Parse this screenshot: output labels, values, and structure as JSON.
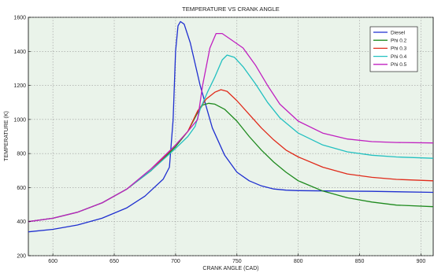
{
  "chart_data": {
    "type": "line",
    "title": "TEMPERATURE VS CRANK ANGLE",
    "xlabel": "CRANK ANGLE (CAD)",
    "ylabel": "TEMPERATURE (K)",
    "xlim": [
      580,
      910
    ],
    "ylim": [
      200,
      1600
    ],
    "xticks": [
      600,
      650,
      700,
      750,
      800,
      850,
      900
    ],
    "yticks": [
      200,
      400,
      600,
      800,
      1000,
      1200,
      1400,
      1600
    ],
    "grid": true,
    "legend_position": "top-right",
    "series": [
      {
        "name": "Diesel",
        "color": "#1f2fd0",
        "points": [
          [
            580,
            340
          ],
          [
            600,
            355
          ],
          [
            620,
            380
          ],
          [
            640,
            420
          ],
          [
            660,
            480
          ],
          [
            675,
            550
          ],
          [
            690,
            650
          ],
          [
            695,
            720
          ],
          [
            698,
            1000
          ],
          [
            700,
            1400
          ],
          [
            702,
            1550
          ],
          [
            704,
            1575
          ],
          [
            707,
            1560
          ],
          [
            712,
            1450
          ],
          [
            720,
            1200
          ],
          [
            730,
            950
          ],
          [
            740,
            790
          ],
          [
            750,
            690
          ],
          [
            760,
            640
          ],
          [
            770,
            610
          ],
          [
            780,
            592
          ],
          [
            790,
            585
          ],
          [
            800,
            582
          ],
          [
            830,
            580
          ],
          [
            860,
            578
          ],
          [
            910,
            572
          ]
        ]
      },
      {
        "name": "Phi 0.2",
        "color": "#1e8a1e",
        "points": [
          [
            580,
            400
          ],
          [
            600,
            420
          ],
          [
            620,
            455
          ],
          [
            640,
            510
          ],
          [
            660,
            590
          ],
          [
            680,
            700
          ],
          [
            700,
            840
          ],
          [
            710,
            930
          ],
          [
            718,
            1040
          ],
          [
            722,
            1085
          ],
          [
            727,
            1095
          ],
          [
            732,
            1090
          ],
          [
            740,
            1060
          ],
          [
            750,
            990
          ],
          [
            760,
            900
          ],
          [
            770,
            820
          ],
          [
            780,
            750
          ],
          [
            790,
            690
          ],
          [
            800,
            640
          ],
          [
            820,
            580
          ],
          [
            840,
            540
          ],
          [
            860,
            515
          ],
          [
            880,
            497
          ],
          [
            910,
            488
          ]
        ]
      },
      {
        "name": "Phi 0.3",
        "color": "#e02a1a",
        "points": [
          [
            580,
            400
          ],
          [
            600,
            420
          ],
          [
            620,
            455
          ],
          [
            640,
            510
          ],
          [
            660,
            590
          ],
          [
            680,
            700
          ],
          [
            700,
            850
          ],
          [
            710,
            930
          ],
          [
            718,
            1050
          ],
          [
            725,
            1120
          ],
          [
            732,
            1160
          ],
          [
            737,
            1175
          ],
          [
            742,
            1165
          ],
          [
            750,
            1110
          ],
          [
            760,
            1030
          ],
          [
            770,
            950
          ],
          [
            780,
            880
          ],
          [
            790,
            820
          ],
          [
            800,
            780
          ],
          [
            820,
            720
          ],
          [
            840,
            680
          ],
          [
            860,
            660
          ],
          [
            880,
            648
          ],
          [
            910,
            640
          ]
        ]
      },
      {
        "name": "Phi 0.4",
        "color": "#22c0c0",
        "points": [
          [
            580,
            400
          ],
          [
            600,
            420
          ],
          [
            620,
            455
          ],
          [
            640,
            510
          ],
          [
            660,
            590
          ],
          [
            680,
            700
          ],
          [
            700,
            830
          ],
          [
            710,
            900
          ],
          [
            716,
            960
          ],
          [
            720,
            1060
          ],
          [
            726,
            1160
          ],
          [
            732,
            1250
          ],
          [
            738,
            1350
          ],
          [
            742,
            1378
          ],
          [
            748,
            1365
          ],
          [
            755,
            1310
          ],
          [
            765,
            1210
          ],
          [
            775,
            1100
          ],
          [
            785,
            1010
          ],
          [
            800,
            920
          ],
          [
            820,
            850
          ],
          [
            840,
            810
          ],
          [
            860,
            790
          ],
          [
            880,
            780
          ],
          [
            910,
            772
          ]
        ]
      },
      {
        "name": "Phi 0.5",
        "color": "#c020c0",
        "points": [
          [
            580,
            400
          ],
          [
            600,
            420
          ],
          [
            620,
            455
          ],
          [
            640,
            510
          ],
          [
            660,
            590
          ],
          [
            680,
            710
          ],
          [
            700,
            850
          ],
          [
            710,
            930
          ],
          [
            718,
            1000
          ],
          [
            722,
            1200
          ],
          [
            728,
            1420
          ],
          [
            733,
            1505
          ],
          [
            738,
            1505
          ],
          [
            745,
            1470
          ],
          [
            755,
            1420
          ],
          [
            765,
            1320
          ],
          [
            775,
            1200
          ],
          [
            785,
            1090
          ],
          [
            800,
            990
          ],
          [
            820,
            920
          ],
          [
            840,
            885
          ],
          [
            860,
            870
          ],
          [
            880,
            865
          ],
          [
            910,
            862
          ]
        ]
      }
    ]
  }
}
